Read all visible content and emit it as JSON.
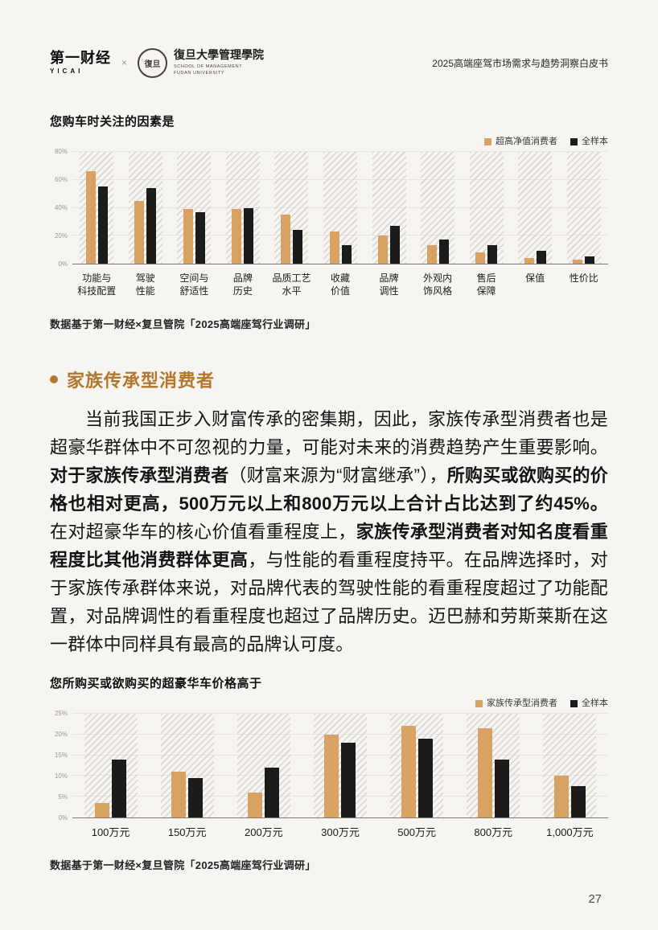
{
  "page": {
    "page_number": "27",
    "background_color": "#f7f5f1"
  },
  "header": {
    "yicai_cn": "第一财经",
    "yicai_en": "YICAI",
    "separator": "×",
    "fudan_seal": "復旦",
    "fudan_cn": "復旦大學管理學院",
    "fudan_en1": "SCHOOL OF MANAGEMENT",
    "fudan_en2": "FUDAN UNIVERSITY",
    "doc_title": "2025高端座驾市场需求与趋势洞察白皮书"
  },
  "section": {
    "heading": "家族传承型消费者",
    "accent_color": "#b2762e"
  },
  "paragraph": {
    "segments": [
      {
        "text": "当前我国正步入财富传承的密集期，因此，家族传承型消费者也是超豪华群体中不可忽视的力量，可能对未来的消费趋势产生重要影响。",
        "bold": false
      },
      {
        "text": "对于家族传承型消费者",
        "bold": true
      },
      {
        "text": "（财富来源为“财富继承”），",
        "bold": false
      },
      {
        "text": "所购买或欲购买的价格也相对更高，500万元以上和800万元以上合计占比达到了约45%。",
        "bold": true
      },
      {
        "text": "在对超豪华车的核心价值看重程度上，",
        "bold": false
      },
      {
        "text": "家族传承型消费者对知名度看重程度比其他消费群体更高",
        "bold": true
      },
      {
        "text": "，与性能的看重程度持平。在品牌选择时，对于家族传承群体来说，对品牌代表的驾驶性能的看重程度超过了功能配置，对品牌调性的看重程度也超过了品牌历史。迈巴赫和劳斯莱斯在这一群体中同样具有最高的品牌认可度。",
        "bold": false
      }
    ]
  },
  "chart_data": [
    {
      "type": "bar",
      "title": "您购车时关注的因素是",
      "caption": "数据基于第一财经×复旦管院「2025高端座驾行业调研」",
      "categories": [
        "功能与\n科技配置",
        "驾驶\n性能",
        "空间与\n舒适性",
        "品牌\n历史",
        "品质工艺\n水平",
        "收藏\n价值",
        "品牌\n调性",
        "外观内\n饰风格",
        "售后\n保障",
        "保值",
        "性价比"
      ],
      "series": [
        {
          "name": "超高净值消费者",
          "color": "#d8a264",
          "values": [
            66,
            45,
            39,
            39,
            35,
            23,
            20,
            13,
            8,
            4,
            3
          ]
        },
        {
          "name": "全样本",
          "color": "#1b1b1b",
          "values": [
            55,
            54,
            37,
            40,
            24,
            13,
            27,
            17,
            13,
            9,
            5
          ]
        }
      ],
      "ylim": [
        0,
        80
      ],
      "yticks": [
        "0%",
        "20%",
        "40%",
        "60%",
        "80%"
      ],
      "legend_position": "top-right",
      "grid": true,
      "hatched_background_columns": true
    },
    {
      "type": "bar",
      "title": "您所购买或欲购买的超豪华车价格高于",
      "caption": "数据基于第一财经×复旦管院「2025高端座驾行业调研」",
      "categories": [
        "100万元",
        "150万元",
        "200万元",
        "300万元",
        "500万元",
        "800万元",
        "1,000万元"
      ],
      "series": [
        {
          "name": "家族传承型消费者",
          "color": "#d8a264",
          "values": [
            3.5,
            11,
            6,
            20,
            22,
            21.5,
            10
          ]
        },
        {
          "name": "全样本",
          "color": "#1b1b1b",
          "values": [
            14,
            9.5,
            12,
            18,
            19,
            14,
            7.5
          ]
        }
      ],
      "ylim": [
        0,
        25
      ],
      "yticks": [
        "0%",
        "5%",
        "10%",
        "15%",
        "20%",
        "25%"
      ],
      "legend_position": "top-right",
      "grid": true,
      "hatched_background_columns": true
    }
  ]
}
